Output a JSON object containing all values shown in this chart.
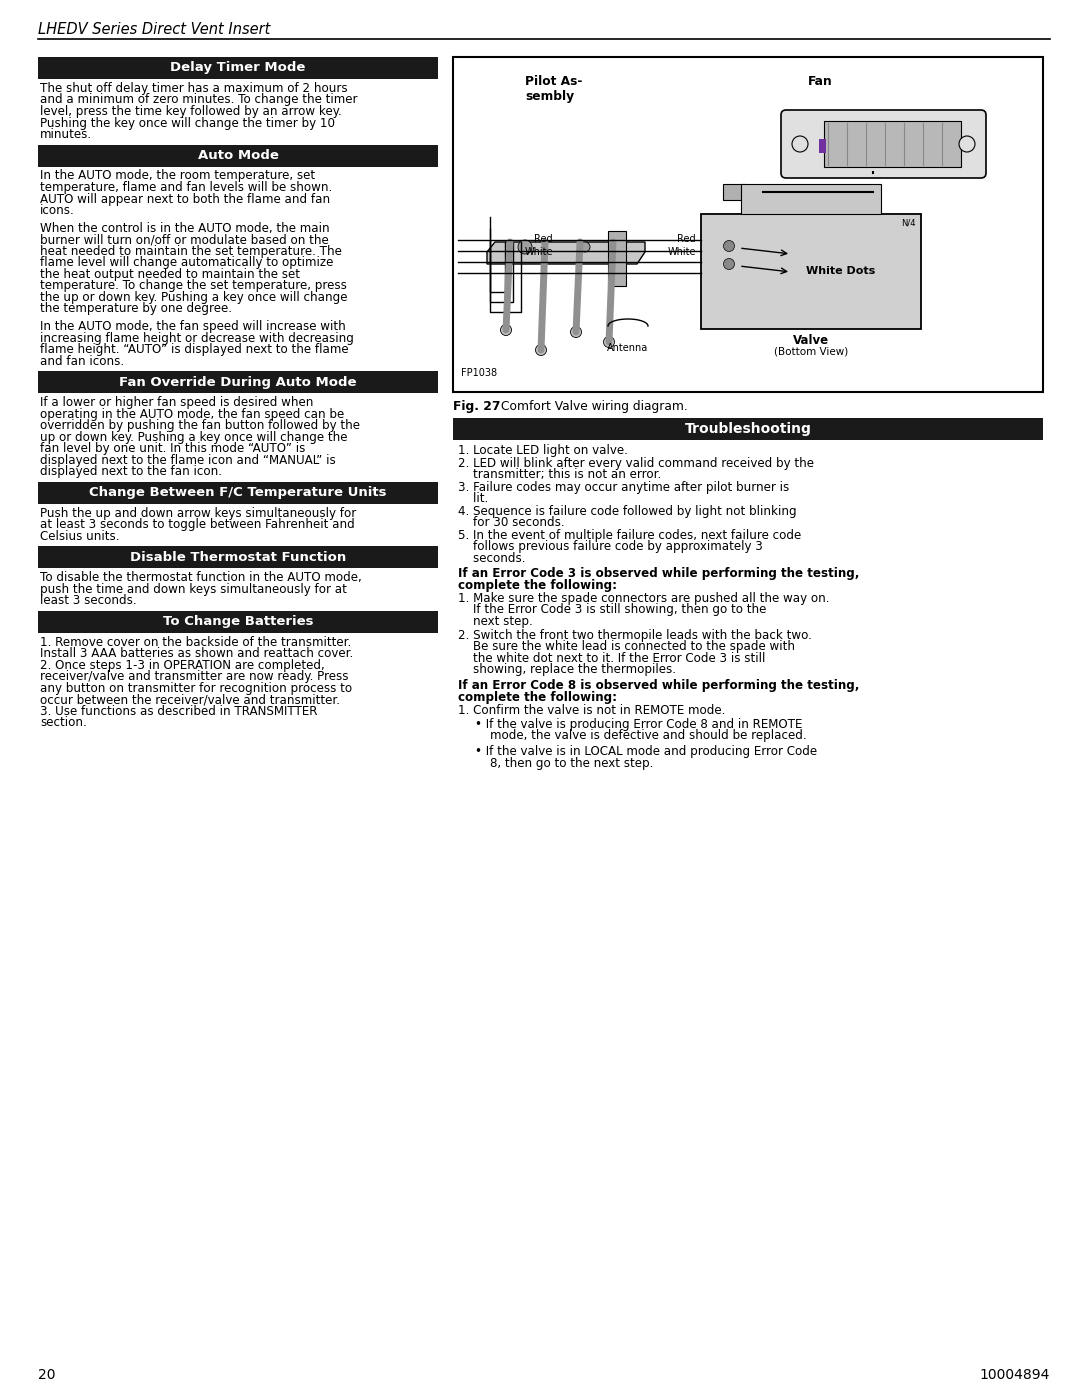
{
  "page_title": "LHEDV Series Direct Vent Insert",
  "page_num_left": "20",
  "page_num_right": "10004894",
  "background_color": "#ffffff",
  "header_bg": "#1a1a1a",
  "header_fg": "#ffffff",
  "left_column": {
    "sections": [
      {
        "title": "Delay Timer Mode",
        "body": "The shut off delay timer has a maximum of 2 hours and a minimum of zero minutes. To change the timer level, press the time key followed by an arrow key. Pushing the key once will change the timer by 10 minutes."
      },
      {
        "title": "Auto Mode",
        "body": "In the AUTO mode, the room temperature, set temperature, flame and fan levels will be shown. AUTO will appear next to both the flame and fan icons.\n\nWhen the control is in the AUTO mode, the main burner will turn on/off or modulate based on the heat needed to maintain the set temperature. The flame level will change automatically to optimize the heat output needed to maintain the set temperature. To change the set temperature, press the up or down key. Pushing a key once will change the temperature by one degree.\n\nIn the AUTO mode, the fan speed will increase with increasing flame height or decrease with decreasing flame height. “AUTO” is displayed next to the flame and fan icons."
      },
      {
        "title": "Fan Override During Auto Mode",
        "body": "If a lower or higher fan speed is desired when operating in the AUTO mode, the fan speed can be overridden by pushing the fan button followed by the up or down key. Pushing a key once will change the fan level by one unit. In this mode “AUTO” is displayed next to the flame icon and “MANUAL” is displayed next to the fan icon."
      },
      {
        "title": "Change Between F/C Temperature Units",
        "body": "Push the up and down arrow keys simultaneously for at least 3 seconds to toggle between Fahrenheit and Celsius units."
      },
      {
        "title": "Disable Thermostat Function",
        "body": "To disable the thermostat function in the AUTO mode, push the time and down keys simultaneously for at least 3 seconds."
      },
      {
        "title": "To Change Batteries",
        "body": "1.  Remove cover on the backside of the transmitter. Install 3 AAA batteries as shown and reattach cover.\n2.  Once steps 1-3 in OPERATION are completed, receiver/valve and transmitter are now ready. Press any button on transmitter for recognition process to occur between the receiver/valve and transmitter.\n3.  Use functions as described in TRANSMITTER section."
      }
    ]
  },
  "right_column": {
    "fig_label": "Fig. 27",
    "fig_caption": "Comfort Valve wiring diagram.",
    "troubleshooting_title": "Troubleshooting",
    "troubleshooting_items": [
      "Locate LED light on valve.",
      "LED will blink after every valid command received by the transmitter; this is not an error.",
      "Failure codes may occur anytime after pilot burner is lit.",
      "Sequence is failure code followed by light not blinking for 30 seconds.",
      "In the event of multiple failure codes, next failure code follows previous failure code by approximately 3 seconds."
    ],
    "error3_title": "If an Error Code 3 is observed while performing the testing, complete the following:",
    "error3_items": [
      "Make sure the spade connectors are pushed all the way on. If the Error Code 3 is still showing, then go to the next step.",
      "Switch the front two thermopile leads with the back two. Be sure the white lead is connected to the spade with the white dot next to it. If the Error Code 3 is still showing, replace the thermopiles."
    ],
    "error8_title": "If an Error Code 8 is observed while performing the testing, complete the following:",
    "error8_items": [
      "Confirm the valve is not in REMOTE mode."
    ],
    "error8_bullets": [
      "If the valve is producing Error Code 8 and in REMOTE mode, the valve is defective and should be replaced.",
      "If the valve is in LOCAL mode and producing Error Code 8, then go to the next step."
    ]
  }
}
